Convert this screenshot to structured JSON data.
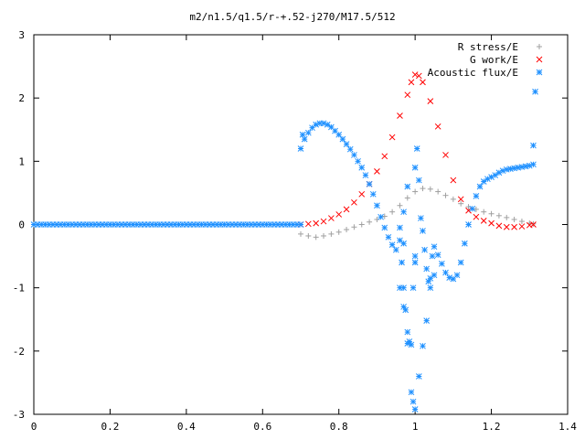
{
  "chart_data": {
    "type": "scatter",
    "title": "m2/n1.5/q1.5/r-+.52-j270/M17.5/512",
    "xlabel": "",
    "ylabel": "",
    "xlim": [
      0,
      1.4
    ],
    "ylim": [
      -3,
      3
    ],
    "x_ticks": [
      "0",
      "0.2",
      "0.4",
      "0.6",
      "0.8",
      "1",
      "1.2",
      "1.4"
    ],
    "y_ticks": [
      "3",
      "2",
      "1",
      "0",
      "-1",
      "-2",
      "-3"
    ],
    "grid": false,
    "legend_position": "top-right",
    "series": [
      {
        "name": "R stress/E",
        "marker": "plus",
        "color": "#a0a0a0",
        "points": [
          [
            0.7,
            -0.15
          ],
          [
            0.72,
            -0.18
          ],
          [
            0.74,
            -0.2
          ],
          [
            0.76,
            -0.18
          ],
          [
            0.78,
            -0.15
          ],
          [
            0.8,
            -0.12
          ],
          [
            0.82,
            -0.08
          ],
          [
            0.84,
            -0.04
          ],
          [
            0.86,
            0.0
          ],
          [
            0.88,
            0.04
          ],
          [
            0.9,
            0.08
          ],
          [
            0.92,
            0.13
          ],
          [
            0.94,
            0.2
          ],
          [
            0.96,
            0.3
          ],
          [
            0.98,
            0.42
          ],
          [
            1.0,
            0.52
          ],
          [
            1.02,
            0.57
          ],
          [
            1.04,
            0.56
          ],
          [
            1.06,
            0.52
          ],
          [
            1.08,
            0.46
          ],
          [
            1.1,
            0.4
          ],
          [
            1.12,
            0.33
          ],
          [
            1.14,
            0.28
          ],
          [
            1.16,
            0.24
          ],
          [
            1.18,
            0.2
          ],
          [
            1.2,
            0.17
          ],
          [
            1.22,
            0.14
          ],
          [
            1.24,
            0.11
          ],
          [
            1.26,
            0.08
          ],
          [
            1.28,
            0.05
          ],
          [
            1.3,
            0.02
          ],
          [
            1.31,
            0.01
          ]
        ]
      },
      {
        "name": "G work/E",
        "marker": "cross",
        "color": "#ff0000",
        "points": [
          [
            0.7,
            0.0
          ],
          [
            0.72,
            0.01
          ],
          [
            0.74,
            0.02
          ],
          [
            0.76,
            0.05
          ],
          [
            0.78,
            0.1
          ],
          [
            0.8,
            0.16
          ],
          [
            0.82,
            0.24
          ],
          [
            0.84,
            0.35
          ],
          [
            0.86,
            0.48
          ],
          [
            0.88,
            0.64
          ],
          [
            0.9,
            0.84
          ],
          [
            0.92,
            1.08
          ],
          [
            0.94,
            1.38
          ],
          [
            0.96,
            1.72
          ],
          [
            0.98,
            2.05
          ],
          [
            0.99,
            2.25
          ],
          [
            1.0,
            2.37
          ],
          [
            1.01,
            2.35
          ],
          [
            1.02,
            2.25
          ],
          [
            1.04,
            1.95
          ],
          [
            1.06,
            1.55
          ],
          [
            1.08,
            1.1
          ],
          [
            1.1,
            0.7
          ],
          [
            1.12,
            0.4
          ],
          [
            1.14,
            0.22
          ],
          [
            1.16,
            0.12
          ],
          [
            1.18,
            0.06
          ],
          [
            1.2,
            0.02
          ],
          [
            1.22,
            -0.02
          ],
          [
            1.24,
            -0.04
          ],
          [
            1.26,
            -0.04
          ],
          [
            1.28,
            -0.03
          ],
          [
            1.3,
            -0.01
          ],
          [
            1.31,
            0.0
          ]
        ]
      },
      {
        "name": "Acoustic flux/E",
        "marker": "star",
        "color": "#1e90ff",
        "points": [
          [
            0.7,
            1.2
          ],
          [
            0.705,
            1.42
          ],
          [
            0.71,
            1.35
          ],
          [
            0.72,
            1.45
          ],
          [
            0.73,
            1.53
          ],
          [
            0.74,
            1.58
          ],
          [
            0.75,
            1.6
          ],
          [
            0.76,
            1.6
          ],
          [
            0.77,
            1.58
          ],
          [
            0.78,
            1.54
          ],
          [
            0.79,
            1.48
          ],
          [
            0.8,
            1.42
          ],
          [
            0.81,
            1.35
          ],
          [
            0.82,
            1.27
          ],
          [
            0.83,
            1.19
          ],
          [
            0.84,
            1.1
          ],
          [
            0.85,
            1.0
          ],
          [
            0.86,
            0.9
          ],
          [
            0.87,
            0.78
          ],
          [
            0.88,
            0.64
          ],
          [
            0.89,
            0.48
          ],
          [
            0.9,
            0.3
          ],
          [
            0.91,
            0.12
          ],
          [
            0.92,
            -0.05
          ],
          [
            0.93,
            -0.2
          ],
          [
            0.94,
            -0.32
          ],
          [
            0.95,
            -0.4
          ],
          [
            0.96,
            -0.25
          ],
          [
            0.965,
            -0.6
          ],
          [
            0.97,
            -1.0
          ],
          [
            0.975,
            -1.35
          ],
          [
            0.98,
            -1.7
          ],
          [
            0.985,
            -1.85
          ],
          [
            0.99,
            -1.9
          ],
          [
            0.995,
            -1.0
          ],
          [
            1.0,
            -0.5
          ],
          [
            1.0,
            0.9
          ],
          [
            1.005,
            1.2
          ],
          [
            1.01,
            0.7
          ],
          [
            1.015,
            0.1
          ],
          [
            1.02,
            -0.1
          ],
          [
            1.025,
            -0.4
          ],
          [
            1.03,
            -0.7
          ],
          [
            1.035,
            -0.9
          ],
          [
            1.04,
            -0.85
          ],
          [
            1.045,
            -0.5
          ],
          [
            1.05,
            -0.35
          ],
          [
            1.06,
            -0.48
          ],
          [
            1.07,
            -0.62
          ],
          [
            1.08,
            -0.76
          ],
          [
            1.09,
            -0.84
          ],
          [
            1.1,
            -0.86
          ],
          [
            1.11,
            -0.8
          ],
          [
            1.12,
            -0.6
          ],
          [
            1.13,
            -0.3
          ],
          [
            1.14,
            0.0
          ],
          [
            1.15,
            0.25
          ],
          [
            1.16,
            0.45
          ],
          [
            1.17,
            0.6
          ],
          [
            1.18,
            0.68
          ],
          [
            1.19,
            0.72
          ],
          [
            1.2,
            0.75
          ],
          [
            1.21,
            0.78
          ],
          [
            1.22,
            0.82
          ],
          [
            1.23,
            0.85
          ],
          [
            1.24,
            0.87
          ],
          [
            1.25,
            0.88
          ],
          [
            1.26,
            0.89
          ],
          [
            1.27,
            0.9
          ],
          [
            1.28,
            0.91
          ],
          [
            1.29,
            0.92
          ],
          [
            1.3,
            0.93
          ],
          [
            1.31,
            0.95
          ],
          [
            1.31,
            1.25
          ],
          [
            1.315,
            2.1
          ],
          [
            0.96,
            -1.0
          ],
          [
            0.97,
            -1.3
          ],
          [
            0.98,
            -1.88
          ],
          [
            0.99,
            -2.65
          ],
          [
            0.995,
            -2.8
          ],
          [
            1.0,
            -2.92
          ],
          [
            1.01,
            -2.4
          ],
          [
            1.02,
            -1.92
          ],
          [
            1.03,
            -1.52
          ],
          [
            1.04,
            -1.0
          ],
          [
            1.05,
            -0.8
          ],
          [
            1.0,
            -0.6
          ],
          [
            0.97,
            -0.3
          ],
          [
            0.96,
            -0.05
          ],
          [
            0.97,
            0.2
          ],
          [
            0.98,
            0.6
          ]
        ]
      },
      {
        "name": "",
        "marker": "star",
        "color": "#1e90ff",
        "points": [
          [
            0.0,
            0.0
          ],
          [
            0.01,
            0.0
          ],
          [
            0.02,
            0.0
          ],
          [
            0.03,
            0.0
          ],
          [
            0.04,
            0.0
          ],
          [
            0.05,
            0.0
          ],
          [
            0.06,
            0.0
          ],
          [
            0.07,
            0.0
          ],
          [
            0.08,
            0.0
          ],
          [
            0.09,
            0.0
          ],
          [
            0.1,
            0.0
          ],
          [
            0.11,
            0.0
          ],
          [
            0.12,
            0.0
          ],
          [
            0.13,
            0.0
          ],
          [
            0.14,
            0.0
          ],
          [
            0.15,
            0.0
          ],
          [
            0.16,
            0.0
          ],
          [
            0.17,
            0.0
          ],
          [
            0.18,
            0.0
          ],
          [
            0.19,
            0.0
          ],
          [
            0.2,
            0.0
          ],
          [
            0.21,
            0.0
          ],
          [
            0.22,
            0.0
          ],
          [
            0.23,
            0.0
          ],
          [
            0.24,
            0.0
          ],
          [
            0.25,
            0.0
          ],
          [
            0.26,
            0.0
          ],
          [
            0.27,
            0.0
          ],
          [
            0.28,
            0.0
          ],
          [
            0.29,
            0.0
          ],
          [
            0.3,
            0.0
          ],
          [
            0.31,
            0.0
          ],
          [
            0.32,
            0.0
          ],
          [
            0.33,
            0.0
          ],
          [
            0.34,
            0.0
          ],
          [
            0.35,
            0.0
          ],
          [
            0.36,
            0.0
          ],
          [
            0.37,
            0.0
          ],
          [
            0.38,
            0.0
          ],
          [
            0.39,
            0.0
          ],
          [
            0.4,
            0.0
          ],
          [
            0.41,
            0.0
          ],
          [
            0.42,
            0.0
          ],
          [
            0.43,
            0.0
          ],
          [
            0.44,
            0.0
          ],
          [
            0.45,
            0.0
          ],
          [
            0.46,
            0.0
          ],
          [
            0.47,
            0.0
          ],
          [
            0.48,
            0.0
          ],
          [
            0.49,
            0.0
          ],
          [
            0.5,
            0.0
          ],
          [
            0.51,
            0.0
          ],
          [
            0.52,
            0.0
          ],
          [
            0.53,
            0.0
          ],
          [
            0.54,
            0.0
          ],
          [
            0.55,
            0.0
          ],
          [
            0.56,
            0.0
          ],
          [
            0.57,
            0.0
          ],
          [
            0.58,
            0.0
          ],
          [
            0.59,
            0.0
          ],
          [
            0.6,
            0.0
          ],
          [
            0.61,
            0.0
          ],
          [
            0.62,
            0.0
          ],
          [
            0.63,
            0.0
          ],
          [
            0.64,
            0.0
          ],
          [
            0.65,
            0.0
          ],
          [
            0.66,
            0.0
          ],
          [
            0.67,
            0.0
          ],
          [
            0.68,
            0.0
          ],
          [
            0.69,
            0.0
          ],
          [
            0.7,
            0.0
          ]
        ]
      }
    ]
  }
}
